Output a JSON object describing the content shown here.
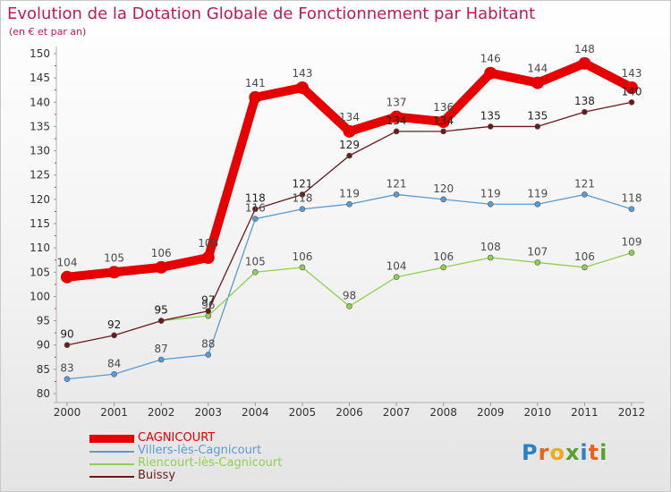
{
  "title": "Evolution de la Dotation Globale de Fonctionnement par Habitant",
  "subtitle": "(en € et par an)",
  "logo": "Proxiti",
  "chart_data": {
    "type": "line",
    "title": "Evolution de la Dotation Globale de Fonctionnement par Habitant",
    "subtitle": "(en € et par an)",
    "x": [
      "2000",
      "2001",
      "2002",
      "2003",
      "2004",
      "2005",
      "2006",
      "2007",
      "2008",
      "2009",
      "2010",
      "2011",
      "2012"
    ],
    "ylim": [
      80,
      150
    ],
    "yticks": [
      80,
      85,
      90,
      95,
      100,
      105,
      110,
      115,
      120,
      125,
      130,
      135,
      140,
      145,
      150
    ],
    "grid": false,
    "legend_position": "bottom-left",
    "series": [
      {
        "name": "CAGNICOURT",
        "color": "#e60000",
        "values": [
          104,
          105,
          106,
          108,
          141,
          143,
          134,
          137,
          136,
          146,
          144,
          148,
          143
        ]
      },
      {
        "name": "Villers-lès-Cagnicourt",
        "color": "#5a9bd4",
        "values": [
          83,
          84,
          87,
          88,
          116,
          118,
          119,
          121,
          120,
          119,
          119,
          121,
          118
        ]
      },
      {
        "name": "Riencourt-lès-Cagnicourt",
        "color": "#8fd14f",
        "values": [
          null,
          null,
          95,
          96,
          105,
          106,
          98,
          104,
          106,
          108,
          107,
          106,
          109
        ]
      },
      {
        "name": "Buissy",
        "color": "#6b1a1a",
        "values": [
          90,
          92,
          95,
          97,
          118,
          121,
          129,
          134,
          134,
          135,
          135,
          138,
          140
        ]
      }
    ]
  }
}
